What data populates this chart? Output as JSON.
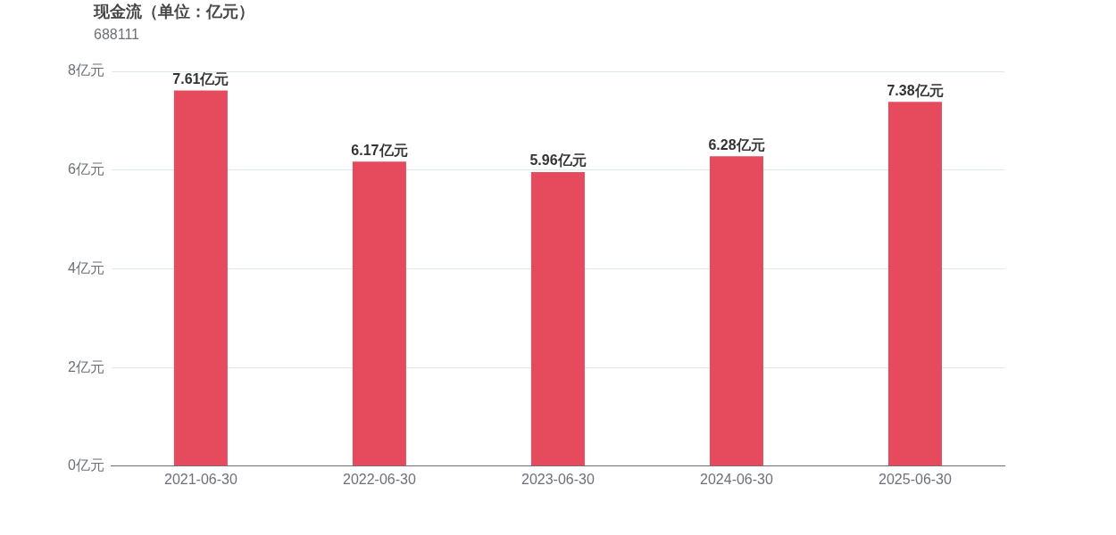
{
  "chart_data": {
    "type": "bar",
    "title": "现金流（单位：亿元）",
    "subtitle": "688111",
    "categories": [
      "2021-06-30",
      "2022-06-30",
      "2023-06-30",
      "2024-06-30",
      "2025-06-30"
    ],
    "values": [
      7.61,
      6.17,
      5.96,
      6.28,
      7.38
    ],
    "value_labels": [
      "7.61亿元",
      "6.17亿元",
      "5.96亿元",
      "6.28亿元",
      "7.38亿元"
    ],
    "color": "#e64b5d",
    "ylim": [
      0,
      8
    ],
    "yticks": [
      {
        "value": 0,
        "label": "0亿元"
      },
      {
        "value": 2,
        "label": "2亿元"
      },
      {
        "value": 4,
        "label": "4亿元"
      },
      {
        "value": 6,
        "label": "6亿元"
      },
      {
        "value": 8,
        "label": "8亿元"
      }
    ],
    "grid": "y",
    "legend": false
  }
}
